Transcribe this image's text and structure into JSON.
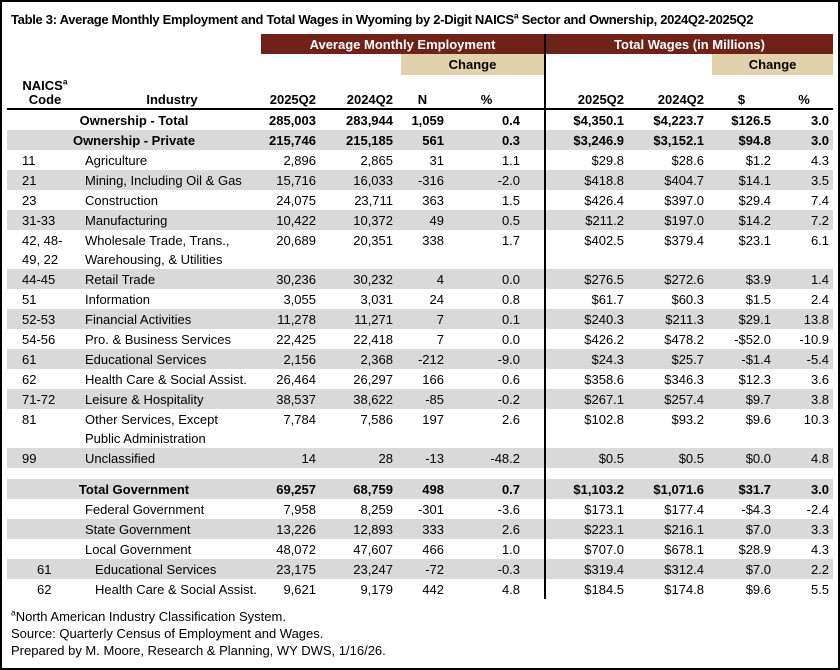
{
  "colors": {
    "maroon": "#6e2218",
    "tan": "#e2d2ab",
    "row_shade": "#d9d9d9"
  },
  "title": {
    "pre": "Table 3: Average Monthly Employment and Total Wages in Wyoming by 2-Digit NAICS",
    "sup": "a",
    "post": " Sector and Ownership, 2024Q2-2025Q2"
  },
  "header": {
    "group_employment": "Average Monthly Employment",
    "group_wages": "Total Wages (in Millions)",
    "change": "Change",
    "code_line1": "NAICS",
    "code_sup": "a",
    "code_line2": "Code",
    "industry": "Industry",
    "emp_cols": [
      "2025Q2",
      "2024Q2",
      "N",
      "%"
    ],
    "wage_cols": [
      "2025Q2",
      "2024Q2",
      "$",
      "%"
    ]
  },
  "rows": [
    {
      "code": "",
      "industry": "Ownership - Total",
      "center": true,
      "bold": true,
      "shaded": false,
      "values": [
        "285,003",
        "283,944",
        "1,059",
        "0.4",
        "$4,350.1",
        "$4,223.7",
        "$126.5",
        "3.0"
      ]
    },
    {
      "code": "",
      "industry": "Ownership - Private",
      "center": true,
      "bold": true,
      "shaded": true,
      "values": [
        "215,746",
        "215,185",
        "561",
        "0.3",
        "$3,246.9",
        "$3,152.1",
        "$94.8",
        "3.0"
      ]
    },
    {
      "code": "11",
      "industry": "Agriculture",
      "shaded": false,
      "values": [
        "2,896",
        "2,865",
        "31",
        "1.1",
        "$29.8",
        "$28.6",
        "$1.2",
        "4.3"
      ]
    },
    {
      "code": "21",
      "industry": "Mining, Including Oil & Gas",
      "shaded": true,
      "values": [
        "15,716",
        "16,033",
        "-316",
        "-2.0",
        "$418.8",
        "$404.7",
        "$14.1",
        "3.5"
      ]
    },
    {
      "code": "23",
      "industry": "Construction",
      "shaded": false,
      "values": [
        "24,075",
        "23,711",
        "363",
        "1.5",
        "$426.4",
        "$397.0",
        "$29.4",
        "7.4"
      ]
    },
    {
      "code": "31-33",
      "industry": "Manufacturing",
      "shaded": true,
      "values": [
        "10,422",
        "10,372",
        "49",
        "0.5",
        "$211.2",
        "$197.0",
        "$14.2",
        "7.2"
      ]
    },
    {
      "code": "42, 48-\n49, 22",
      "industry": "Wholesale Trade, Trans.,\nWarehousing, & Utilities",
      "shaded": false,
      "values": [
        "20,689",
        "20,351",
        "338",
        "1.7",
        "$402.5",
        "$379.4",
        "$23.1",
        "6.1"
      ]
    },
    {
      "code": "44-45",
      "industry": "Retail Trade",
      "shaded": true,
      "values": [
        "30,236",
        "30,232",
        "4",
        "0.0",
        "$276.5",
        "$272.6",
        "$3.9",
        "1.4"
      ]
    },
    {
      "code": "51",
      "industry": "Information",
      "shaded": false,
      "values": [
        "3,055",
        "3,031",
        "24",
        "0.8",
        "$61.7",
        "$60.3",
        "$1.5",
        "2.4"
      ]
    },
    {
      "code": "52-53",
      "industry": "Financial Activities",
      "shaded": true,
      "values": [
        "11,278",
        "11,271",
        "7",
        "0.1",
        "$240.3",
        "$211.3",
        "$29.1",
        "13.8"
      ]
    },
    {
      "code": "54-56",
      "industry": "Pro. & Business Services",
      "shaded": false,
      "values": [
        "22,425",
        "22,418",
        "7",
        "0.0",
        "$426.2",
        "$478.2",
        "-$52.0",
        "-10.9"
      ]
    },
    {
      "code": "61",
      "industry": "Educational Services",
      "shaded": true,
      "values": [
        "2,156",
        "2,368",
        "-212",
        "-9.0",
        "$24.3",
        "$25.7",
        "-$1.4",
        "-5.4"
      ]
    },
    {
      "code": "62",
      "industry": "Health Care & Social Assist.",
      "shaded": false,
      "values": [
        "26,464",
        "26,297",
        "166",
        "0.6",
        "$358.6",
        "$346.3",
        "$12.3",
        "3.6"
      ]
    },
    {
      "code": "71-72",
      "industry": "Leisure & Hospitality",
      "shaded": true,
      "values": [
        "38,537",
        "38,622",
        "-85",
        "-0.2",
        "$267.1",
        "$257.4",
        "$9.7",
        "3.8"
      ]
    },
    {
      "code": "81",
      "industry": "Other Services, Except\nPublic Administration",
      "shaded": false,
      "values": [
        "7,784",
        "7,586",
        "197",
        "2.6",
        "$102.8",
        "$93.2",
        "$9.6",
        "10.3"
      ]
    },
    {
      "code": "99",
      "industry": "Unclassified",
      "shaded": true,
      "values": [
        "14",
        "28",
        "-13",
        "-48.2",
        "$0.5",
        "$0.5",
        "$0.0",
        "4.8"
      ]
    },
    {
      "code": "",
      "industry": "",
      "spacer": true,
      "shaded": false,
      "values": [
        "",
        "",
        "",
        "",
        "",
        "",
        "",
        ""
      ]
    },
    {
      "code": "",
      "industry": "Total Government",
      "center": true,
      "bold": true,
      "shaded": true,
      "values": [
        "69,257",
        "68,759",
        "498",
        "0.7",
        "$1,103.2",
        "$1,071.6",
        "$31.7",
        "3.0"
      ]
    },
    {
      "code": "",
      "industry": "Federal Government",
      "shaded": false,
      "values": [
        "7,958",
        "8,259",
        "-301",
        "-3.6",
        "$173.1",
        "$177.4",
        "-$4.3",
        "-2.4"
      ]
    },
    {
      "code": "",
      "industry": "State Government",
      "shaded": true,
      "values": [
        "13,226",
        "12,893",
        "333",
        "2.6",
        "$223.1",
        "$216.1",
        "$7.0",
        "3.3"
      ]
    },
    {
      "code": "",
      "industry": "Local Government",
      "shaded": false,
      "values": [
        "48,072",
        "47,607",
        "466",
        "1.0",
        "$707.0",
        "$678.1",
        "$28.9",
        "4.3"
      ]
    },
    {
      "code": "61",
      "industry": "Educational Services",
      "indent": true,
      "shaded": true,
      "values": [
        "23,175",
        "23,247",
        "-72",
        "-0.3",
        "$319.4",
        "$312.4",
        "$7.0",
        "2.2"
      ]
    },
    {
      "code": "62",
      "industry": "Health Care & Social Assist.",
      "indent": true,
      "shaded": false,
      "values": [
        "9,621",
        "9,179",
        "442",
        "4.8",
        "$184.5",
        "$174.8",
        "$9.6",
        "5.5"
      ]
    }
  ],
  "footnotes": {
    "a_sup": "a",
    "a_text": "North American Industry Classification System.",
    "source": "Source: Quarterly Census of Employment and Wages.",
    "prepared": "Prepared by M. Moore, Research & Planning, WY DWS, 1/16/26."
  }
}
